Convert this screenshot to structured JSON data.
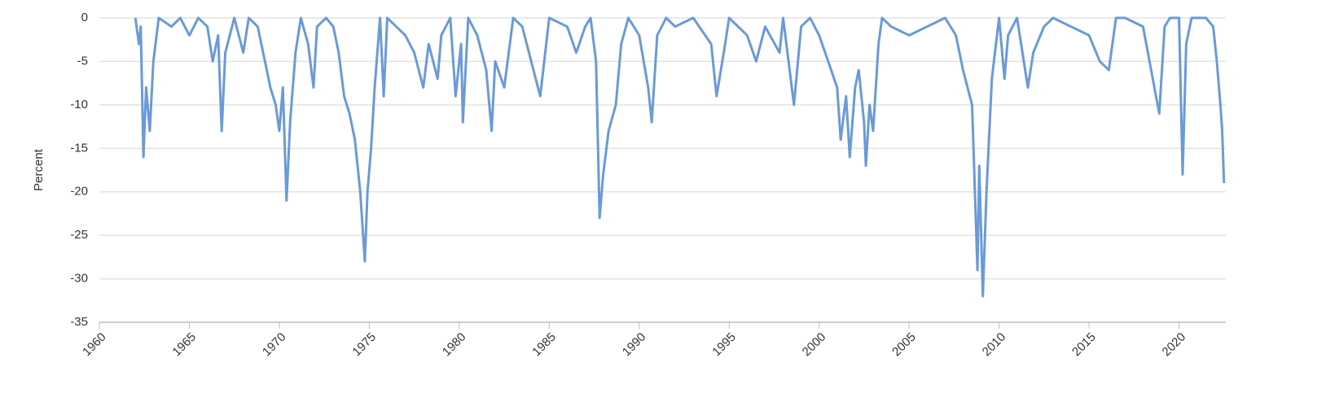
{
  "chart_data": {
    "type": "line",
    "y_label": "Percent",
    "x": [
      1962.0,
      1962.2,
      1962.3,
      1962.45,
      1962.6,
      1962.8,
      1963.0,
      1963.3,
      1964.0,
      1964.5,
      1965.0,
      1965.5,
      1966.0,
      1966.3,
      1966.6,
      1966.8,
      1967.0,
      1967.5,
      1968.0,
      1968.3,
      1968.8,
      1969.2,
      1969.5,
      1969.8,
      1970.0,
      1970.2,
      1970.4,
      1970.6,
      1970.9,
      1971.2,
      1971.6,
      1971.9,
      1972.1,
      1972.6,
      1973.0,
      1973.3,
      1973.6,
      1973.9,
      1974.2,
      1974.5,
      1974.75,
      1974.9,
      1975.1,
      1975.3,
      1975.6,
      1975.8,
      1976.0,
      1976.5,
      1977.0,
      1977.5,
      1978.0,
      1978.3,
      1978.8,
      1979.0,
      1979.5,
      1979.8,
      1980.1,
      1980.2,
      1980.5,
      1981.0,
      1981.5,
      1981.8,
      1982.0,
      1982.5,
      1983.0,
      1983.5,
      1984.0,
      1984.5,
      1985.0,
      1986.0,
      1986.5,
      1987.0,
      1987.3,
      1987.6,
      1987.8,
      1988.0,
      1988.3,
      1988.7,
      1989.0,
      1989.4,
      1990.0,
      1990.5,
      1990.7,
      1991.0,
      1991.5,
      1992.0,
      1993.0,
      1994.0,
      1994.3,
      1994.7,
      1995.0,
      1996.0,
      1996.5,
      1997.0,
      1997.8,
      1998.0,
      1998.6,
      1999.0,
      1999.5,
      2000.0,
      2000.5,
      2001.0,
      2001.2,
      2001.5,
      2001.7,
      2002.0,
      2002.2,
      2002.5,
      2002.6,
      2002.8,
      2003.0,
      2003.3,
      2003.5,
      2004.0,
      2005.0,
      2006.0,
      2007.0,
      2007.6,
      2008.0,
      2008.5,
      2008.8,
      2008.9,
      2009.1,
      2009.3,
      2009.6,
      2010.0,
      2010.3,
      2010.5,
      2011.0,
      2011.6,
      2011.9,
      2012.5,
      2013.0,
      2014.0,
      2015.0,
      2015.6,
      2016.1,
      2016.5,
      2017.0,
      2018.0,
      2018.9,
      2019.2,
      2019.5,
      2020.0,
      2020.2,
      2020.4,
      2020.7,
      2021.0,
      2021.5,
      2021.9,
      2022.1,
      2022.3,
      2022.4,
      2022.5
    ],
    "series": [
      {
        "color": "#6a9ad8",
        "values": [
          0,
          -3,
          -1,
          -16,
          -8,
          -13,
          -5,
          0,
          -1,
          0,
          -2,
          0,
          -1,
          -5,
          -2,
          -13,
          -4,
          0,
          -4,
          0,
          -1,
          -5,
          -8,
          -10,
          -13,
          -8,
          -21,
          -12,
          -4,
          0,
          -3,
          -8,
          -1,
          0,
          -1,
          -4,
          -9,
          -11,
          -14,
          -20,
          -28,
          -20,
          -15,
          -8,
          0,
          -9,
          0,
          -1,
          -2,
          -4,
          -8,
          -3,
          -7,
          -2,
          0,
          -9,
          -3,
          -12,
          0,
          -2,
          -6,
          -13,
          -5,
          -8,
          0,
          -1,
          -5,
          -9,
          0,
          -1,
          -4,
          -1,
          0,
          -5,
          -23,
          -18,
          -13,
          -10,
          -3,
          0,
          -2,
          -8,
          -12,
          -2,
          0,
          -1,
          0,
          -3,
          -9,
          -4,
          0,
          -2,
          -5,
          -1,
          -4,
          0,
          -10,
          -1,
          0,
          -2,
          -5,
          -8,
          -14,
          -9,
          -16,
          -8,
          -6,
          -12,
          -17,
          -10,
          -13,
          -3,
          0,
          -1,
          -2,
          -1,
          0,
          -2,
          -6,
          -10,
          -29,
          -17,
          -32,
          -20,
          -7,
          0,
          -7,
          -2,
          0,
          -8,
          -4,
          -1,
          0,
          -1,
          -2,
          -5,
          -6,
          0,
          0,
          -1,
          -11,
          -1,
          0,
          0,
          -18,
          -3,
          0,
          0,
          0,
          -1,
          -5,
          -10,
          -13,
          -19
        ]
      }
    ],
    "xlim": [
      1960,
      2022.6
    ],
    "xticks": [
      1960,
      1965,
      1970,
      1975,
      1980,
      1985,
      1990,
      1995,
      2000,
      2005,
      2010,
      2015,
      2020
    ],
    "ylim": [
      -35,
      0
    ],
    "yticks": [
      0,
      -5,
      -10,
      -15,
      -20,
      -25,
      -30,
      -35
    ],
    "grid": true
  }
}
